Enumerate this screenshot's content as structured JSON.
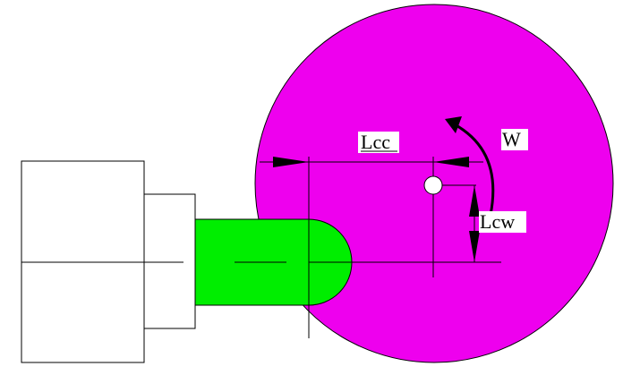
{
  "colors": {
    "disk": "#ee00ee",
    "shaft": "#00ee00",
    "stroke": "#000000",
    "label_bg": "#ffffff"
  },
  "labels": {
    "lcc": "Lcc",
    "w": "W",
    "lcw": "Lcw"
  }
}
